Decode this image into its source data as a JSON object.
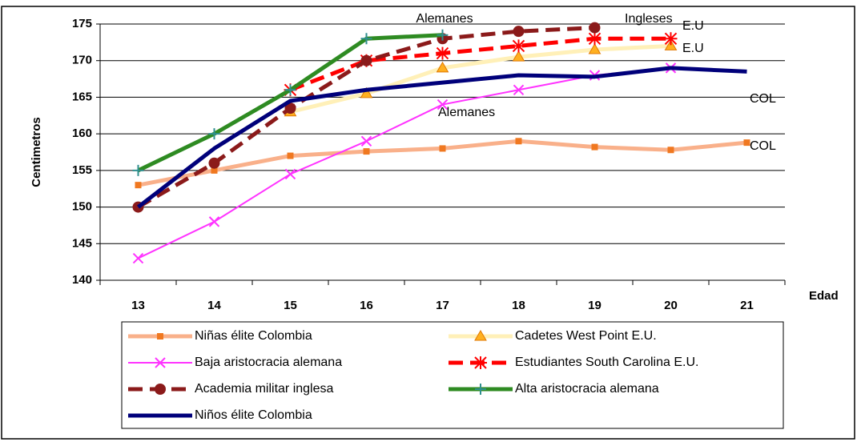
{
  "chart_data": {
    "type": "line",
    "y_label": "Centimetros",
    "x_label": "Edad",
    "categories": [
      "13",
      "14",
      "15",
      "16",
      "17",
      "18",
      "19",
      "20",
      "21"
    ],
    "ylim": [
      140,
      175
    ],
    "yticks": [
      140,
      145,
      150,
      155,
      160,
      165,
      170,
      175
    ],
    "grid": true,
    "series": [
      {
        "name": "Niñas élite Colombia",
        "color": "#f9b08a",
        "marker": "square",
        "marker_color": "#f07820",
        "width": 5,
        "dashed": false,
        "values": [
          153,
          155,
          157,
          157.6,
          158,
          159,
          158.2,
          157.8,
          158.8
        ]
      },
      {
        "name": "Cadetes West Point E.U.",
        "color": "#fff0b8",
        "marker": "triangle",
        "marker_color": "#ffb020",
        "width": 5,
        "dashed": false,
        "values": [
          null,
          null,
          163,
          165.5,
          169,
          170.5,
          171.5,
          172,
          null
        ]
      },
      {
        "name": "Baja aristocracia alemana",
        "color": "#ff33ff",
        "marker": "x",
        "marker_color": "#ff33ff",
        "width": 2,
        "dashed": false,
        "values": [
          143,
          148,
          154.5,
          159,
          164,
          166,
          168,
          169,
          null
        ]
      },
      {
        "name": "Estudiantes South Carolina E.U.",
        "color": "#ff0000",
        "marker": "asterisk",
        "marker_color": "#ff0000",
        "width": 5,
        "dashed": true,
        "values": [
          null,
          null,
          166,
          170,
          171,
          172,
          173,
          173,
          null
        ]
      },
      {
        "name": "Academia militar inglesa",
        "color": "#8b1a1a",
        "marker": "circle",
        "marker_color": "#8b1a1a",
        "width": 5,
        "dashed": true,
        "values": [
          150,
          156,
          163.5,
          170,
          173,
          174,
          174.5,
          null,
          null
        ]
      },
      {
        "name": "Alta aristocracia alemana",
        "color": "#2e8b22",
        "marker": "plus",
        "marker_color": "#2f8f8f",
        "width": 5,
        "dashed": false,
        "values": [
          155,
          160,
          166,
          173,
          173.5,
          null,
          null,
          null,
          null
        ]
      },
      {
        "name": "Niños élite Colombia",
        "color": "#00007a",
        "marker": "none",
        "marker_color": "#00007a",
        "width": 5,
        "dashed": false,
        "values": [
          150,
          158,
          164.5,
          166,
          167,
          168,
          167.8,
          169,
          168.5
        ]
      }
    ],
    "annotations": [
      "Alemanes",
      "Ingleses",
      "E.U",
      "E.U",
      "COL",
      "Alemanes",
      "COL"
    ]
  }
}
